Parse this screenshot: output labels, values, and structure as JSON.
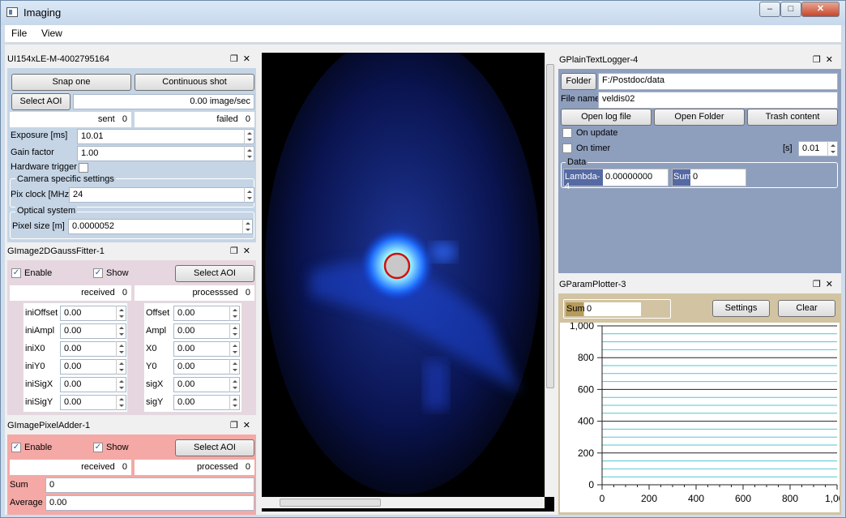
{
  "window": {
    "title": "Imaging",
    "min": "‒",
    "max": "□",
    "close": "✕"
  },
  "menu": {
    "file": "File",
    "view": "View"
  },
  "camera": {
    "title": "UI154xLE-M-4002795164",
    "snap": "Snap one",
    "continuous": "Continuous shot",
    "select_aoi": "Select AOI",
    "rate": "0.00 image/sec",
    "sent_label": "sent",
    "sent": "0",
    "failed_label": "failed",
    "failed": "0",
    "exposure_label": "Exposure [ms]",
    "exposure": "10.01",
    "gain_label": "Gain factor",
    "gain": "1.00",
    "hw_label": "Hardware trigger",
    "specific": "Camera specific settings",
    "pixclock_label": "Pix clock [MHz]",
    "pixclock": "24",
    "optical": "Optical system",
    "pixsize_label": "Pixel size [m]",
    "pixsize": "0.0000052"
  },
  "gauss": {
    "title": "GImage2DGaussFitter-1",
    "enable": "Enable",
    "show": "Show",
    "select_aoi": "Select AOI",
    "received_label": "received",
    "received": "0",
    "processed_label": "processsed",
    "processed": "0",
    "left": [
      {
        "label": "iniOffset",
        "value": "0.00"
      },
      {
        "label": "iniAmpl",
        "value": "0.00"
      },
      {
        "label": "iniX0",
        "value": "0.00"
      },
      {
        "label": "iniY0",
        "value": "0.00"
      },
      {
        "label": "iniSigX",
        "value": "0.00"
      },
      {
        "label": "iniSigY",
        "value": "0.00"
      }
    ],
    "right": [
      {
        "label": "Offset",
        "value": "0.00"
      },
      {
        "label": "Ampl",
        "value": "0.00"
      },
      {
        "label": "X0",
        "value": "0.00"
      },
      {
        "label": "Y0",
        "value": "0.00"
      },
      {
        "label": "sigX",
        "value": "0.00"
      },
      {
        "label": "sigY",
        "value": "0.00"
      }
    ]
  },
  "adder": {
    "title": "GImagePixelAdder-1",
    "enable": "Enable",
    "show": "Show",
    "select_aoi": "Select AOI",
    "received_label": "received",
    "received": "0",
    "processed_label": "processed",
    "processed": "0",
    "sum_label": "Sum",
    "sum": "0",
    "avg_label": "Average",
    "avg": "0.00"
  },
  "logger": {
    "title": "GPlainTextLogger-4",
    "folder_btn": "Folder",
    "folder": "F:/Postdoc/data",
    "filename_label": "File name",
    "filename": "veldis02",
    "open_log": "Open log file",
    "open_folder": "Open Folder",
    "trash": "Trash content",
    "on_update": "On update",
    "on_timer": "On timer",
    "timer_unit": "[s]",
    "timer": "0.01",
    "data_group": "Data",
    "lambda_label": "Lambda-4",
    "lambda": "0.00000000",
    "sum_label": "Sum",
    "sum": "0"
  },
  "plotter": {
    "title": "GParamPlotter-3",
    "sum_label": "Sum",
    "sum": "0",
    "settings": "Settings",
    "clear": "Clear"
  },
  "chart_data": {
    "type": "line",
    "x": [],
    "y": [],
    "xlim": [
      0,
      1000
    ],
    "ylim": [
      0,
      1000
    ],
    "xticks": [
      "0",
      "200",
      "400",
      "600",
      "800",
      "1,000"
    ],
    "yticks": [
      "0",
      "200",
      "400",
      "600",
      "800",
      "1,000"
    ],
    "grid": true
  },
  "colors": {
    "panel_blue": "#c5d5e6",
    "panel_pink": "#e6d6df",
    "panel_red": "#f4a9a6",
    "logger_bg": "#8e9ebd",
    "plot_bg": "#d2c4a2",
    "cursor": "#d01010"
  }
}
